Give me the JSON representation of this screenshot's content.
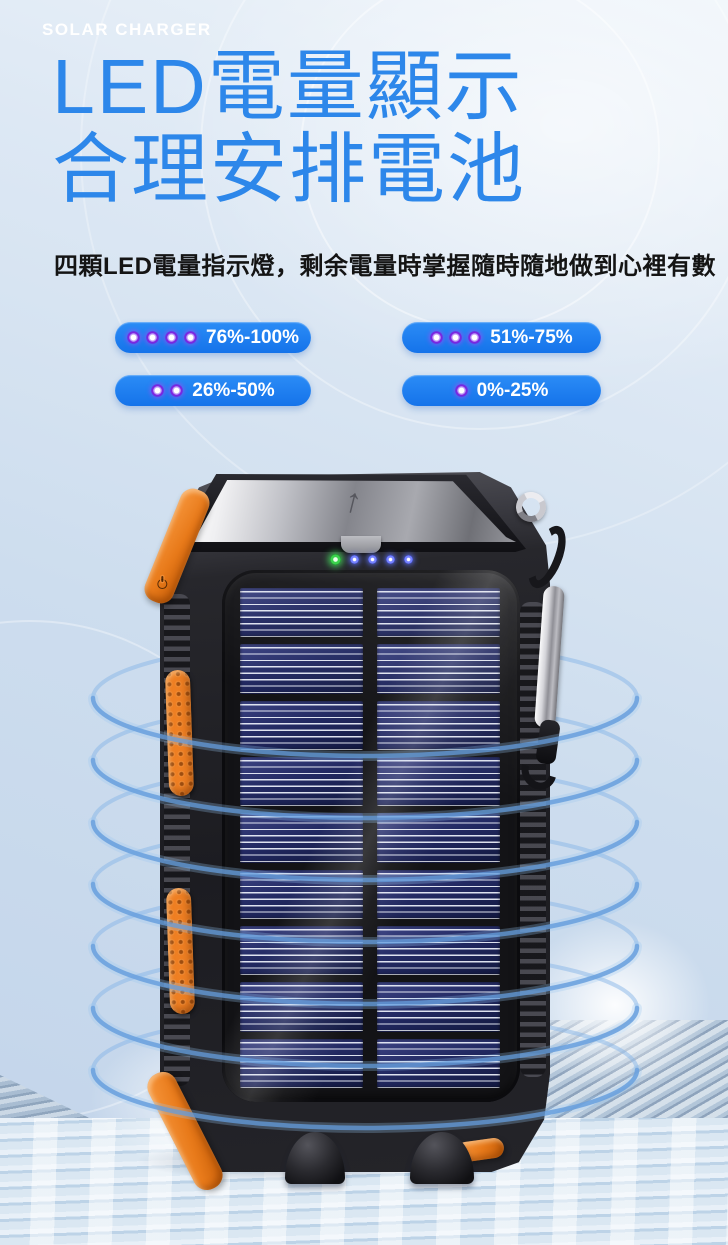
{
  "page": {
    "eyebrow": "SOLAR CHARGER",
    "title_line1": "LED電量顯示",
    "title_line2": "合理安排電池",
    "description": "四顆LED電量指示燈，剩余電量時掌握隨時隨地做到心裡有數"
  },
  "battery_levels": [
    {
      "label": "76%-100%",
      "dots": 4
    },
    {
      "label": "51%-75%",
      "dots": 3
    },
    {
      "label": "26%-50%",
      "dots": 2
    },
    {
      "label": "0%-25%",
      "dots": 1
    }
  ],
  "product": {
    "indicator": {
      "green_leds": 1,
      "blue_leds": 4
    },
    "solar_rows_per_column": 9,
    "solar_columns": 2,
    "wave_rings": 7
  },
  "icons": {
    "up_arrow_glyph": "↑"
  },
  "colors": {
    "title_blue": "#2d87ea",
    "pill_blue": "#1b7df2",
    "led_dot_purple": "#7a27e0",
    "indicator_green": "#3bd24d",
    "indicator_blue": "#3b49d8",
    "accent_orange": "#e87a1a",
    "solar_panel_navy": "#232a63",
    "ring_blue": "#88b6e8"
  }
}
